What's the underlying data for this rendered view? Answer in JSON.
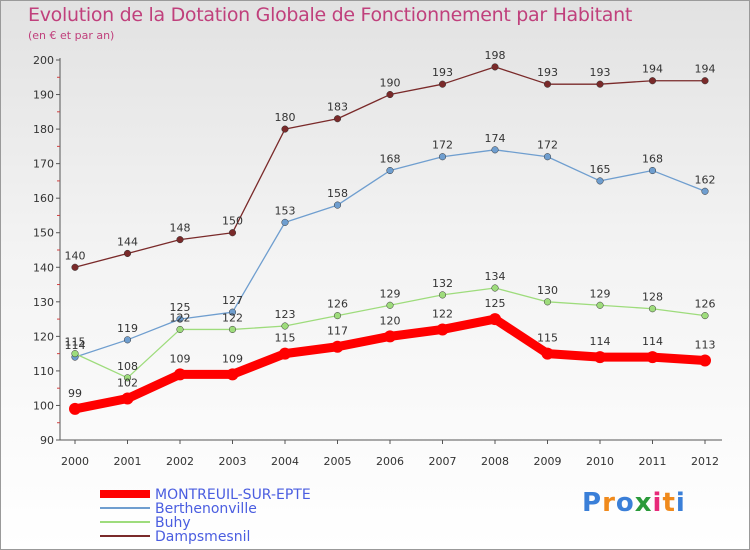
{
  "title": "Evolution de la Dotation Globale de Fonctionnement par Habitant",
  "subtitle": "(en € et par an)",
  "logo": "Proxiti",
  "chart_data": {
    "type": "line",
    "x": [
      "2000",
      "2001",
      "2002",
      "2003",
      "2004",
      "2005",
      "2006",
      "2007",
      "2008",
      "2009",
      "2010",
      "2011",
      "2012"
    ],
    "ylim": [
      90,
      200
    ],
    "yticks": [
      90,
      100,
      110,
      120,
      130,
      140,
      150,
      160,
      170,
      180,
      190,
      200
    ],
    "grid": false,
    "legend_position": "bottom-left",
    "series": [
      {
        "name": "MONTREUIL-SUR-EPTE",
        "color": "#ff0000",
        "values": [
          99,
          102,
          109,
          109,
          115,
          117,
          120,
          122,
          125,
          115,
          114,
          114,
          113
        ]
      },
      {
        "name": "Berthenonville",
        "color": "#6f9ecf",
        "values": [
          114,
          119,
          125,
          127,
          153,
          158,
          168,
          172,
          174,
          172,
          165,
          168,
          162
        ]
      },
      {
        "name": "Buhy",
        "color": "#9edc7c",
        "values": [
          115,
          108,
          122,
          122,
          123,
          126,
          129,
          132,
          134,
          130,
          129,
          128,
          126
        ]
      },
      {
        "name": "Dampsmesnil",
        "color": "#7a2a2a",
        "values": [
          140,
          144,
          148,
          150,
          180,
          183,
          190,
          193,
          198,
          193,
          193,
          194,
          194
        ]
      }
    ]
  }
}
